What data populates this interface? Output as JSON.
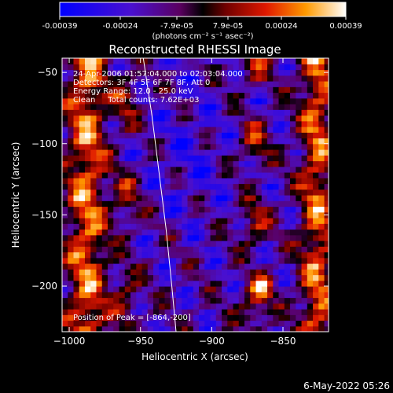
{
  "chart_data": {
    "type": "heatmap",
    "title": "Reconstructed RHESSI Image",
    "xlabel": "Heliocentric X (arcsec)",
    "ylabel": "Heliocentric Y (arcsec)",
    "xlim": [
      -1005,
      -818
    ],
    "ylim": [
      -232,
      -40
    ],
    "xticks": [
      -1000,
      -950,
      -900,
      -850
    ],
    "yticks": [
      -50,
      -100,
      -150,
      -200
    ],
    "colorbar": {
      "ticks": [
        "-0.00039",
        "-0.00024",
        "-7.9e-05",
        "7.9e-05",
        "0.00024",
        "0.00039"
      ],
      "units": "(photons cm⁻² s⁻¹ asec⁻²)",
      "range": [
        -0.00039,
        0.00039
      ]
    },
    "annotations": [
      "24-Apr-2006 01:57:04.000 to 02:03:04.000",
      "Detectors: 3F 4F 5F 6F 7F 8F, Att 0",
      "Energy Range: 12.0 - 25.0 keV",
      "Clean     Total counts: 7.62E+03"
    ],
    "peak_label": "Position of Peak = [-864,-200]",
    "peak": [
      -864,
      -200
    ],
    "limb": [
      [
        -948,
        -40
      ],
      [
        -942,
        -80
      ],
      [
        -937,
        -120
      ],
      [
        -932,
        -160
      ],
      [
        -928,
        -200
      ],
      [
        -925,
        -232
      ]
    ],
    "grid": false
  },
  "footer": {
    "timestamp": "6-May-2022 05:26"
  },
  "colors": {
    "background": "#000000",
    "foreground": "#ffffff"
  }
}
